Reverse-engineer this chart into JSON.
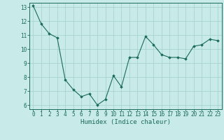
{
  "x": [
    0,
    1,
    2,
    3,
    4,
    5,
    6,
    7,
    8,
    9,
    10,
    11,
    12,
    13,
    14,
    15,
    16,
    17,
    18,
    19,
    20,
    21,
    22,
    23
  ],
  "y": [
    13.1,
    11.8,
    11.1,
    10.8,
    7.8,
    7.1,
    6.6,
    6.8,
    6.0,
    6.4,
    8.1,
    7.3,
    9.4,
    9.4,
    10.9,
    10.3,
    9.6,
    9.4,
    9.4,
    9.3,
    10.2,
    10.3,
    10.7,
    10.6
  ],
  "line_color": "#1a6b5a",
  "marker": "D",
  "marker_size": 1.8,
  "bg_color": "#c8eae8",
  "grid_color": "#a8d4d0",
  "tick_color": "#1a6b5a",
  "xlabel": "Humidex (Indice chaleur)",
  "ylabel": "",
  "xlim": [
    -0.5,
    23.5
  ],
  "ylim": [
    5.7,
    13.3
  ],
  "yticks": [
    6,
    7,
    8,
    9,
    10,
    11,
    12,
    13
  ],
  "xticks": [
    0,
    1,
    2,
    3,
    4,
    5,
    6,
    7,
    8,
    9,
    10,
    11,
    12,
    13,
    14,
    15,
    16,
    17,
    18,
    19,
    20,
    21,
    22,
    23
  ],
  "xlabel_fontsize": 6.5,
  "tick_fontsize": 5.5,
  "linewidth": 0.8
}
